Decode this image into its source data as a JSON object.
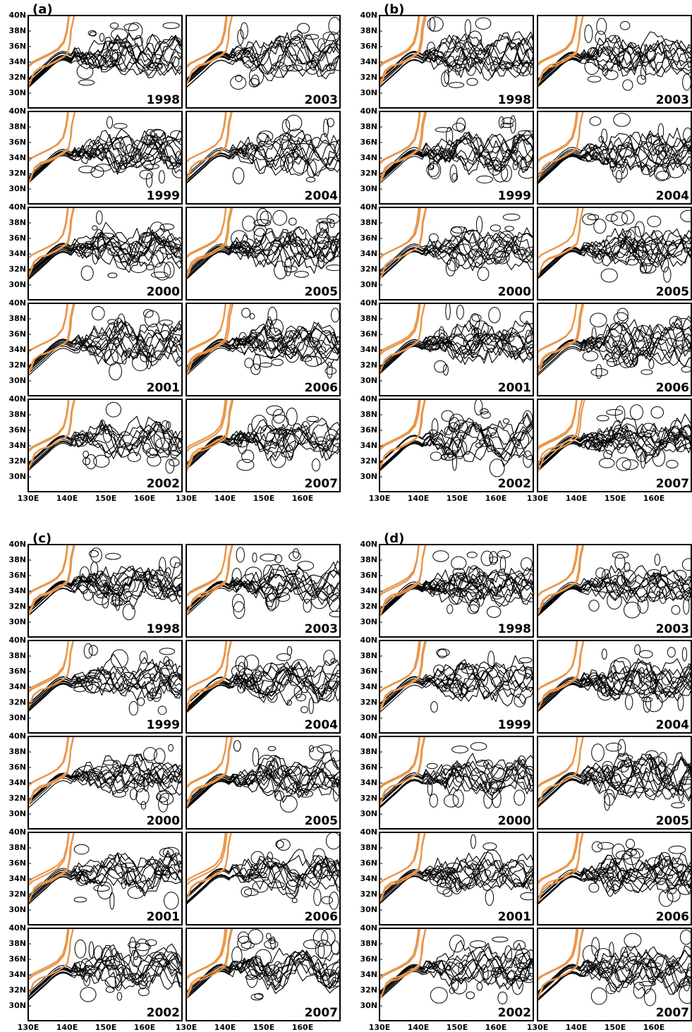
{
  "figure": {
    "groups": [
      {
        "label": "(a)",
        "panels": [
          "1998",
          "2003",
          "1999",
          "2004",
          "2000",
          "2005",
          "2001",
          "2006",
          "2002",
          "2007"
        ]
      },
      {
        "label": "(b)",
        "panels": [
          "1998",
          "2003",
          "1999",
          "2004",
          "2000",
          "2005",
          "2001",
          "2006",
          "2002",
          "2007"
        ]
      },
      {
        "label": "(c)",
        "panels": [
          "1998",
          "2003",
          "1999",
          "2004",
          "2000",
          "2005",
          "2001",
          "2006",
          "2002",
          "2007"
        ]
      },
      {
        "label": "(d)",
        "panels": [
          "1998",
          "2003",
          "1999",
          "2004",
          "2000",
          "2005",
          "2001",
          "2006",
          "2002",
          "2007"
        ]
      }
    ],
    "y_ticks": [
      "40N",
      "38N",
      "36N",
      "34N",
      "32N",
      "30N"
    ],
    "x_ticks": [
      "130E",
      "140E",
      "150E",
      "160E"
    ]
  }
}
